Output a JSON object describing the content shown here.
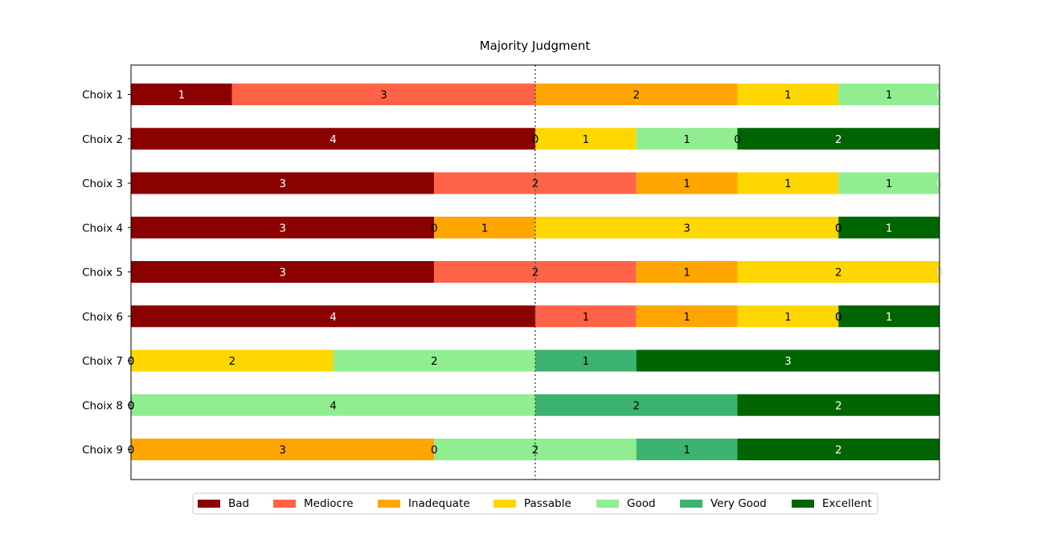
{
  "chart_data": {
    "type": "bar",
    "orientation": "horizontal-stacked",
    "title": "Majority Judgment",
    "xlabel": "",
    "ylabel": "",
    "categories": [
      "Choix 1",
      "Choix 2",
      "Choix 3",
      "Choix 4",
      "Choix 5",
      "Choix 6",
      "Choix 7",
      "Choix 8",
      "Choix 9"
    ],
    "series": [
      {
        "name": "Bad",
        "color": "#8b0000",
        "label_color": "#ffffff",
        "values": [
          1,
          4,
          3,
          3,
          3,
          4,
          0,
          0,
          0
        ]
      },
      {
        "name": "Mediocre",
        "color": "#ff6347",
        "label_color": "#000000",
        "values": [
          3,
          0,
          2,
          0,
          2,
          1,
          0,
          0,
          0
        ]
      },
      {
        "name": "Inadequate",
        "color": "#ffa500",
        "label_color": "#000000",
        "values": [
          2,
          0,
          1,
          1,
          1,
          1,
          0,
          0,
          3
        ]
      },
      {
        "name": "Passable",
        "color": "#ffd700",
        "label_color": "#000000",
        "values": [
          1,
          1,
          1,
          3,
          2,
          1,
          2,
          0,
          0
        ]
      },
      {
        "name": "Good",
        "color": "#90ee90",
        "label_color": "#000000",
        "values": [
          1,
          1,
          1,
          0,
          0,
          0,
          2,
          4,
          2
        ]
      },
      {
        "name": "Very Good",
        "color": "#3cb371",
        "label_color": "#000000",
        "values": [
          0,
          0,
          0,
          0,
          0,
          0,
          1,
          2,
          1
        ]
      },
      {
        "name": "Excellent",
        "color": "#006400",
        "label_color": "#ffffff",
        "values": [
          0,
          2,
          0,
          1,
          0,
          1,
          3,
          2,
          2
        ]
      }
    ],
    "xlim": [
      0,
      8
    ],
    "median_line": 4,
    "legend_position": "bottom-center",
    "grid": false
  }
}
